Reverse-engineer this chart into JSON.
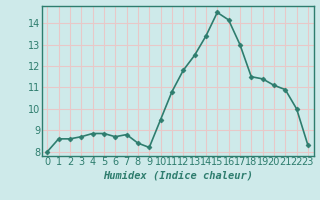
{
  "x": [
    0,
    1,
    2,
    3,
    4,
    5,
    6,
    7,
    8,
    9,
    10,
    11,
    12,
    13,
    14,
    15,
    16,
    17,
    18,
    19,
    20,
    21,
    22,
    23
  ],
  "y": [
    8.0,
    8.6,
    8.6,
    8.7,
    8.85,
    8.85,
    8.7,
    8.8,
    8.4,
    8.2,
    9.5,
    10.8,
    11.8,
    12.5,
    13.4,
    14.5,
    14.15,
    13.0,
    11.5,
    11.4,
    11.1,
    10.9,
    10.0,
    8.3
  ],
  "line_color": "#2e7d6e",
  "marker": "D",
  "marker_size": 2.5,
  "bg_color": "#ceeaea",
  "grid_color": "#e8c8c8",
  "xlabel": "Humidex (Indice chaleur)",
  "xlabel_fontsize": 7.5,
  "tick_fontsize": 7,
  "ylim": [
    7.8,
    14.8
  ],
  "xlim": [
    -0.5,
    23.5
  ],
  "yticks": [
    8,
    9,
    10,
    11,
    12,
    13,
    14
  ],
  "xticks": [
    0,
    1,
    2,
    3,
    4,
    5,
    6,
    7,
    8,
    9,
    10,
    11,
    12,
    13,
    14,
    15,
    16,
    17,
    18,
    19,
    20,
    21,
    22,
    23
  ],
  "linewidth": 1.2,
  "spine_color": "#2e7d6e",
  "tick_color": "#2e7d6e",
  "label_color": "#2e7d6e"
}
